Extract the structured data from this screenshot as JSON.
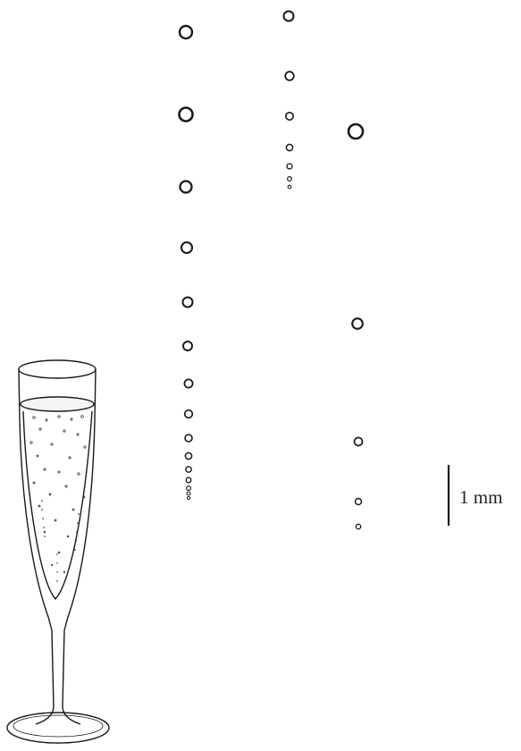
{
  "scale_bar": {
    "label": "1 mm"
  },
  "colors": {
    "ink": "#1a1a1a",
    "paper": "#ffffff",
    "liquid": "#f4f4f4"
  }
}
